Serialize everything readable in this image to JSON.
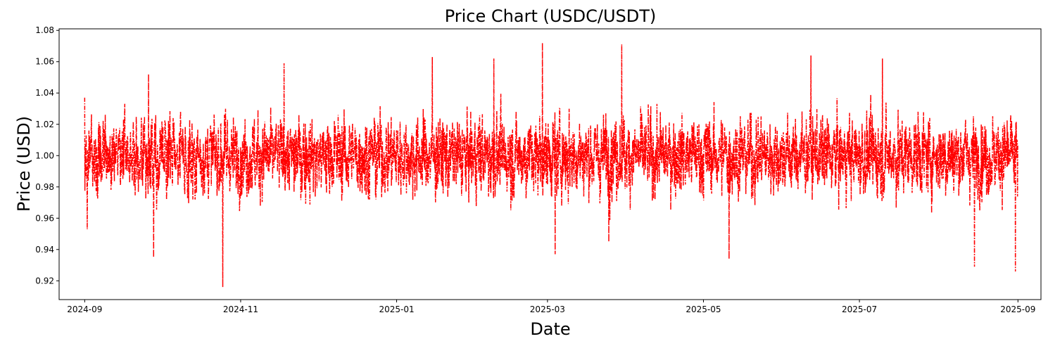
{
  "chart_data": {
    "type": "line",
    "title": "Price Chart (USDC/USDT)",
    "xlabel": "Date",
    "ylabel": "Price (USD)",
    "x_range": [
      "2024-09-01",
      "2025-09-01"
    ],
    "xlim": [
      "2024-08-22",
      "2025-09-10"
    ],
    "ylim": [
      0.908,
      1.081
    ],
    "x_ticks": [
      "2024-09",
      "2024-11",
      "2025-01",
      "2025-03",
      "2025-05",
      "2025-07",
      "2025-09"
    ],
    "y_ticks": [
      "0.92",
      "0.94",
      "0.96",
      "0.98",
      "1.00",
      "1.02",
      "1.04",
      "1.06",
      "1.08"
    ],
    "grid": false,
    "legend": "none",
    "series": [
      {
        "color": "#ff0000",
        "line_style": "dash-dot",
        "baseline": 1.0,
        "approx_range": [
          0.916,
          1.072
        ],
        "typical_band": [
          0.96,
          1.04
        ],
        "notable_points": [
          {
            "x": "2024-09-01",
            "y": 1.037
          },
          {
            "x": "2024-09-02",
            "y": 0.953
          },
          {
            "x": "2024-09-26",
            "y": 1.052
          },
          {
            "x": "2024-09-28",
            "y": 0.935
          },
          {
            "x": "2024-10-25",
            "y": 0.916
          },
          {
            "x": "2024-11-18",
            "y": 1.059
          },
          {
            "x": "2025-01-15",
            "y": 1.063
          },
          {
            "x": "2025-02-08",
            "y": 1.062
          },
          {
            "x": "2025-02-27",
            "y": 1.072
          },
          {
            "x": "2025-03-04",
            "y": 0.937
          },
          {
            "x": "2025-03-30",
            "y": 1.071
          },
          {
            "x": "2025-03-25",
            "y": 0.945
          },
          {
            "x": "2025-05-11",
            "y": 0.934
          },
          {
            "x": "2025-06-12",
            "y": 1.064
          },
          {
            "x": "2025-07-10",
            "y": 1.062
          },
          {
            "x": "2025-08-15",
            "y": 0.929
          },
          {
            "x": "2025-08-31",
            "y": 0.926
          }
        ]
      }
    ]
  }
}
